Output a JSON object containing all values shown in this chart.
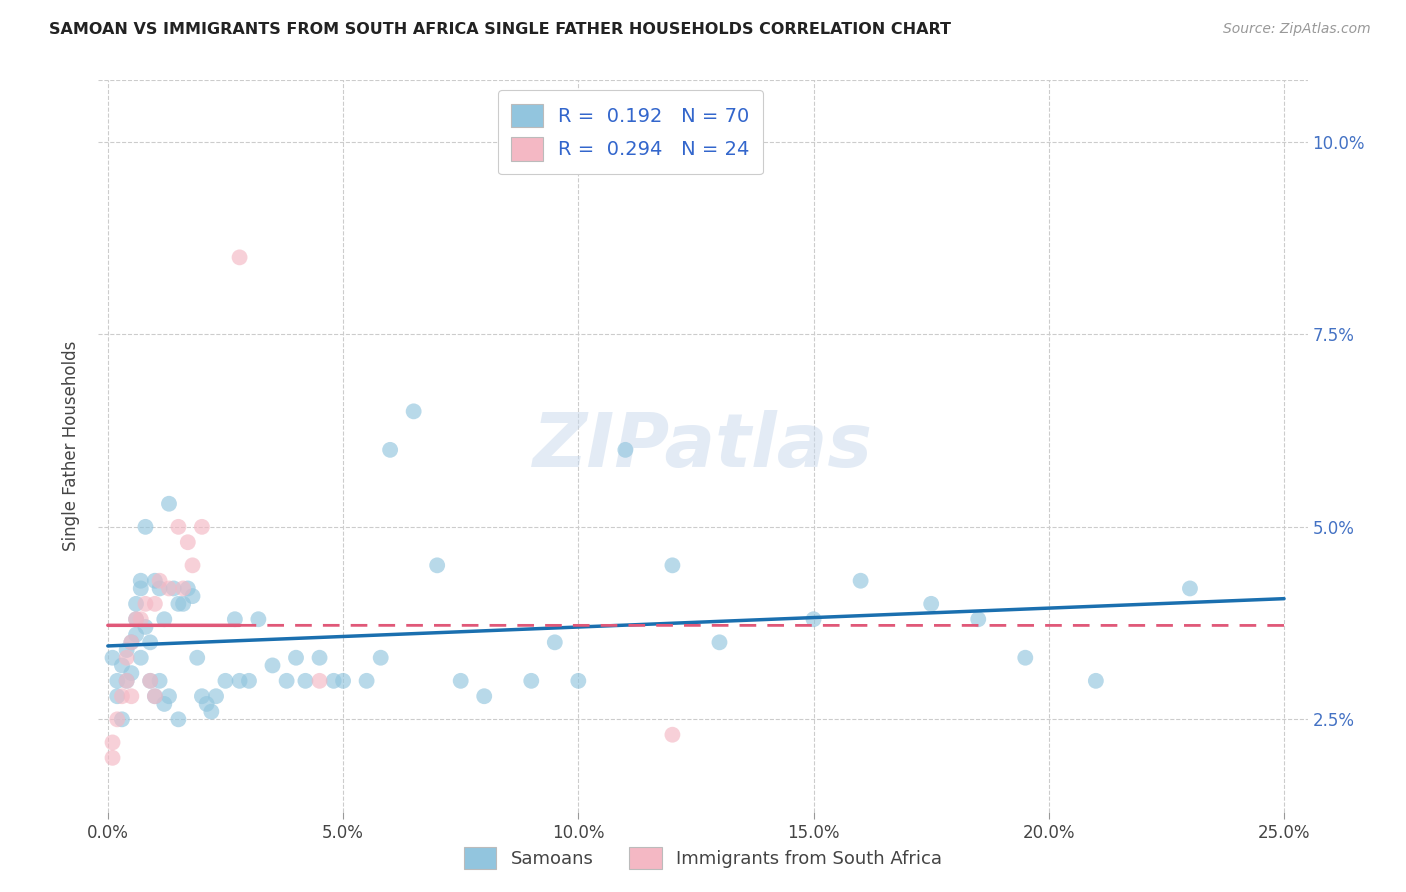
{
  "title": "SAMOAN VS IMMIGRANTS FROM SOUTH AFRICA SINGLE FATHER HOUSEHOLDS CORRELATION CHART",
  "source": "Source: ZipAtlas.com",
  "ylabel": "Single Father Households",
  "xlim": [
    -0.002,
    0.255
  ],
  "ylim": [
    0.013,
    0.108
  ],
  "xlabel_tick_vals": [
    0.0,
    0.05,
    0.1,
    0.15,
    0.2,
    0.25
  ],
  "xlabel_tick_labels": [
    "0.0%",
    "5.0%",
    "10.0%",
    "15.0%",
    "20.0%",
    "25.0%"
  ],
  "ytick_vals": [
    0.025,
    0.05,
    0.075,
    0.1
  ],
  "ytick_labels": [
    "2.5%",
    "5.0%",
    "7.5%",
    "10.0%"
  ],
  "r1": "0.192",
  "n1": "70",
  "r2": "0.294",
  "n2": "24",
  "color_blue": "#92c5de",
  "color_pink": "#f4b8c4",
  "line_blue": "#1a6faf",
  "line_pink": "#e05878",
  "legend_label1": "Samoans",
  "legend_label2": "Immigrants from South Africa",
  "watermark_text": "ZIPatlas",
  "blue_x": [
    0.001,
    0.002,
    0.002,
    0.003,
    0.003,
    0.004,
    0.004,
    0.005,
    0.005,
    0.006,
    0.006,
    0.006,
    0.007,
    0.007,
    0.007,
    0.008,
    0.008,
    0.009,
    0.009,
    0.01,
    0.01,
    0.011,
    0.011,
    0.012,
    0.012,
    0.013,
    0.013,
    0.014,
    0.015,
    0.015,
    0.016,
    0.017,
    0.018,
    0.019,
    0.02,
    0.021,
    0.022,
    0.023,
    0.025,
    0.027,
    0.028,
    0.03,
    0.032,
    0.035,
    0.038,
    0.04,
    0.042,
    0.045,
    0.048,
    0.05,
    0.055,
    0.058,
    0.06,
    0.065,
    0.07,
    0.075,
    0.08,
    0.09,
    0.095,
    0.1,
    0.11,
    0.12,
    0.13,
    0.15,
    0.16,
    0.175,
    0.185,
    0.195,
    0.21,
    0.23
  ],
  "blue_y": [
    0.033,
    0.03,
    0.028,
    0.032,
    0.025,
    0.034,
    0.03,
    0.035,
    0.031,
    0.04,
    0.038,
    0.036,
    0.043,
    0.042,
    0.033,
    0.05,
    0.037,
    0.035,
    0.03,
    0.043,
    0.028,
    0.042,
    0.03,
    0.038,
    0.027,
    0.028,
    0.053,
    0.042,
    0.04,
    0.025,
    0.04,
    0.042,
    0.041,
    0.033,
    0.028,
    0.027,
    0.026,
    0.028,
    0.03,
    0.038,
    0.03,
    0.03,
    0.038,
    0.032,
    0.03,
    0.033,
    0.03,
    0.033,
    0.03,
    0.03,
    0.03,
    0.033,
    0.06,
    0.065,
    0.045,
    0.03,
    0.028,
    0.03,
    0.035,
    0.03,
    0.06,
    0.045,
    0.035,
    0.038,
    0.043,
    0.04,
    0.038,
    0.033,
    0.03,
    0.042
  ],
  "pink_x": [
    0.001,
    0.001,
    0.002,
    0.003,
    0.004,
    0.004,
    0.005,
    0.005,
    0.006,
    0.007,
    0.008,
    0.009,
    0.01,
    0.01,
    0.011,
    0.013,
    0.015,
    0.016,
    0.017,
    0.018,
    0.02,
    0.028,
    0.045,
    0.12
  ],
  "pink_y": [
    0.022,
    0.02,
    0.025,
    0.028,
    0.03,
    0.033,
    0.028,
    0.035,
    0.038,
    0.038,
    0.04,
    0.03,
    0.04,
    0.028,
    0.043,
    0.042,
    0.05,
    0.042,
    0.048,
    0.045,
    0.05,
    0.085,
    0.03,
    0.023
  ]
}
